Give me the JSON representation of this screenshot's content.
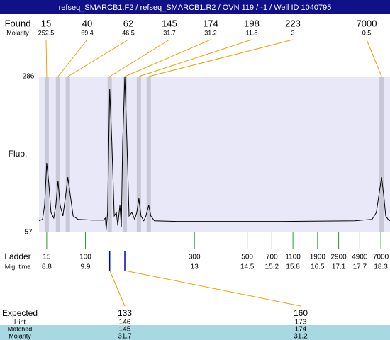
{
  "header": {
    "title": "refseq_SMARCB1.F2 / refseq_SMARCB1.R2 / OVN 119 / -1 / Well ID 1040795"
  },
  "found": {
    "label": "Found",
    "molarity_label": "Molarity",
    "sizes": [
      15,
      40,
      62,
      145,
      174,
      198,
      223,
      7000
    ],
    "molarity": [
      252.5,
      69.4,
      46.5,
      31.7,
      31.2,
      11.8,
      3,
      0.5
    ],
    "time": [
      8.8,
      9.12,
      9.4,
      10.59,
      11.02,
      11.42,
      11.7,
      18.32
    ]
  },
  "chart_data": {
    "type": "line",
    "y_label": "Fluo.",
    "xlim": [
      8.58,
      18.56
    ],
    "ylim": [
      57,
      286
    ],
    "yticks": [
      57,
      286
    ],
    "x": [
      8.58,
      8.68,
      8.74,
      8.8,
      8.86,
      8.92,
      9.0,
      9.06,
      9.12,
      9.18,
      9.26,
      9.34,
      9.4,
      9.47,
      9.55,
      9.69,
      10.09,
      10.41,
      10.47,
      10.49,
      10.53,
      10.59,
      10.65,
      10.72,
      10.78,
      10.82,
      10.88,
      10.92,
      10.96,
      11.02,
      11.08,
      11.14,
      11.22,
      11.3,
      11.36,
      11.42,
      11.48,
      11.56,
      11.62,
      11.7,
      11.76,
      11.86,
      12.51,
      15.53,
      17.55,
      18.05,
      18.17,
      18.26,
      18.32,
      18.38,
      18.44,
      18.52,
      18.56
    ],
    "values": [
      74,
      76,
      97,
      159,
      128,
      86,
      78,
      97,
      133,
      97,
      81,
      112,
      138,
      112,
      81,
      76,
      75,
      75,
      78,
      60,
      86,
      268,
      190,
      81,
      86,
      67,
      97,
      65,
      190,
      286,
      190,
      81,
      86,
      76,
      86,
      107,
      81,
      74,
      81,
      97,
      81,
      74,
      73,
      73,
      74,
      76,
      86,
      117,
      138,
      112,
      81,
      75,
      74
    ],
    "color": "#000000",
    "band_color": "#c8c8d6",
    "plot_bg": "#e8e8f8"
  },
  "ladder": {
    "label": "Ladder",
    "time_label": "Mig. time",
    "sizes": [
      15,
      100,
      300,
      500,
      700,
      1100,
      1900,
      2900,
      4900,
      7000
    ],
    "time": [
      8.8,
      9.9,
      13,
      14.5,
      15.2,
      15.8,
      16.5,
      17.1,
      17.7,
      18.3
    ]
  },
  "expected": {
    "label": "Expected",
    "hint_label": "Hint",
    "matched_label": "Matched",
    "molarity_label": "Molarity",
    "sizes": [
      133,
      160
    ],
    "hint": [
      146,
      173
    ],
    "matched": [
      145,
      174
    ],
    "molarity": [
      31.7,
      31.2
    ],
    "time": [
      10.59,
      11.02
    ]
  }
}
